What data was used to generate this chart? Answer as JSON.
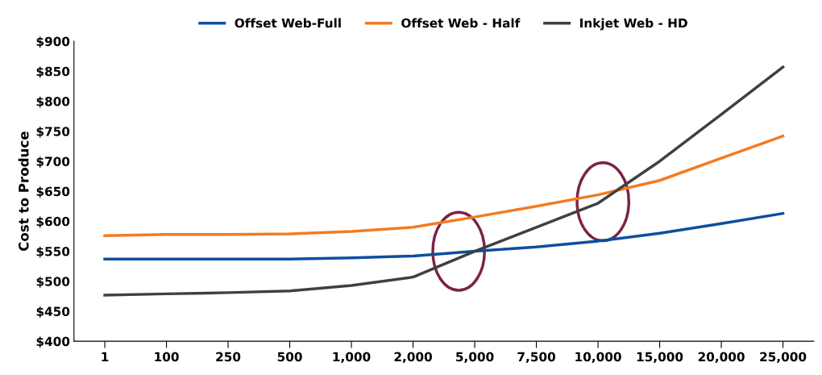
{
  "chart_data": {
    "type": "line",
    "ylabel": "Cost to Produce",
    "categories": [
      "1",
      "100",
      "250",
      "500",
      "1,000",
      "2,000",
      "5,000",
      "7,500",
      "10,000",
      "15,000",
      "20,000",
      "25,000"
    ],
    "series": [
      {
        "name": "Offset Web-Full",
        "color": "#0b4fa0",
        "values": [
          537,
          537,
          537,
          537,
          539,
          542,
          550,
          557,
          567,
          580,
          596,
          613
        ]
      },
      {
        "name": "Offset Web - Half",
        "color": "#f47b20",
        "values": [
          576,
          578,
          578,
          579,
          583,
          590,
          607,
          625,
          644,
          668,
          705,
          742
        ]
      },
      {
        "name": "Inkjet Web - HD",
        "color": "#404040",
        "values": [
          477,
          479,
          481,
          484,
          493,
          507,
          550,
          590,
          630,
          700,
          778,
          857
        ]
      }
    ],
    "ylim": [
      400,
      900
    ],
    "yticks": [
      {
        "value": 400,
        "label": "$400"
      },
      {
        "value": 450,
        "label": "$450"
      },
      {
        "value": 500,
        "label": "$500"
      },
      {
        "value": 550,
        "label": "$550"
      },
      {
        "value": 600,
        "label": "$600"
      },
      {
        "value": 650,
        "label": "$650"
      },
      {
        "value": 700,
        "label": "$700"
      },
      {
        "value": 750,
        "label": "$750"
      },
      {
        "value": 800,
        "label": "$800"
      },
      {
        "value": 850,
        "label": "$850"
      },
      {
        "value": 900,
        "label": "$900"
      }
    ],
    "grid": false,
    "legend": "top",
    "marker": "none",
    "line_style": "solid"
  }
}
